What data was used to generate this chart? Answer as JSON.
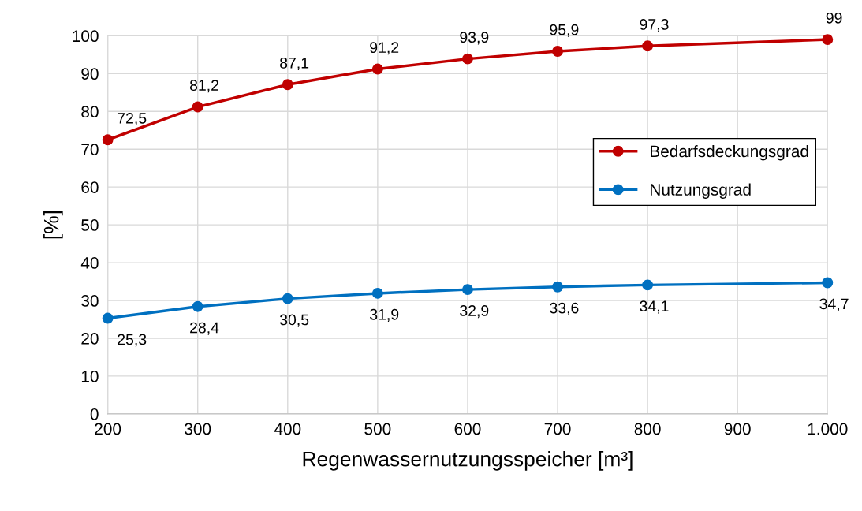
{
  "chart_data": {
    "type": "line",
    "xlabel": "Regenwassernutzungsspeicher [m³]",
    "ylabel": "[%]",
    "x": [
      200,
      300,
      400,
      500,
      600,
      700,
      800,
      1000
    ],
    "series": [
      {
        "name": "Bedarfsdeckungsgrad",
        "color": "#c00000",
        "values": [
          72.5,
          81.2,
          87.1,
          91.2,
          93.9,
          95.9,
          97.3,
          99
        ],
        "value_labels": [
          "72,5",
          "81,2",
          "87,1",
          "91,2",
          "93,9",
          "95,9",
          "97,3",
          "99"
        ]
      },
      {
        "name": "Nutzungsgrad",
        "color": "#0070c0",
        "values": [
          25.3,
          28.4,
          30.5,
          31.9,
          32.9,
          33.6,
          34.1,
          34.7
        ],
        "value_labels": [
          "25,3",
          "28,4",
          "30,5",
          "31,9",
          "32,9",
          "33,6",
          "34,1",
          "34,7"
        ]
      }
    ],
    "xlim": [
      200,
      1000
    ],
    "xticks": [
      200,
      300,
      400,
      500,
      600,
      700,
      800,
      900,
      {
        "value": 1000,
        "label": "1.000"
      }
    ],
    "ylim": [
      0,
      100
    ],
    "yticks": [
      0,
      10,
      20,
      30,
      40,
      50,
      60,
      70,
      80,
      90,
      100
    ],
    "grid": true,
    "legend": "right",
    "marker": "circle",
    "line_style": "solid"
  }
}
